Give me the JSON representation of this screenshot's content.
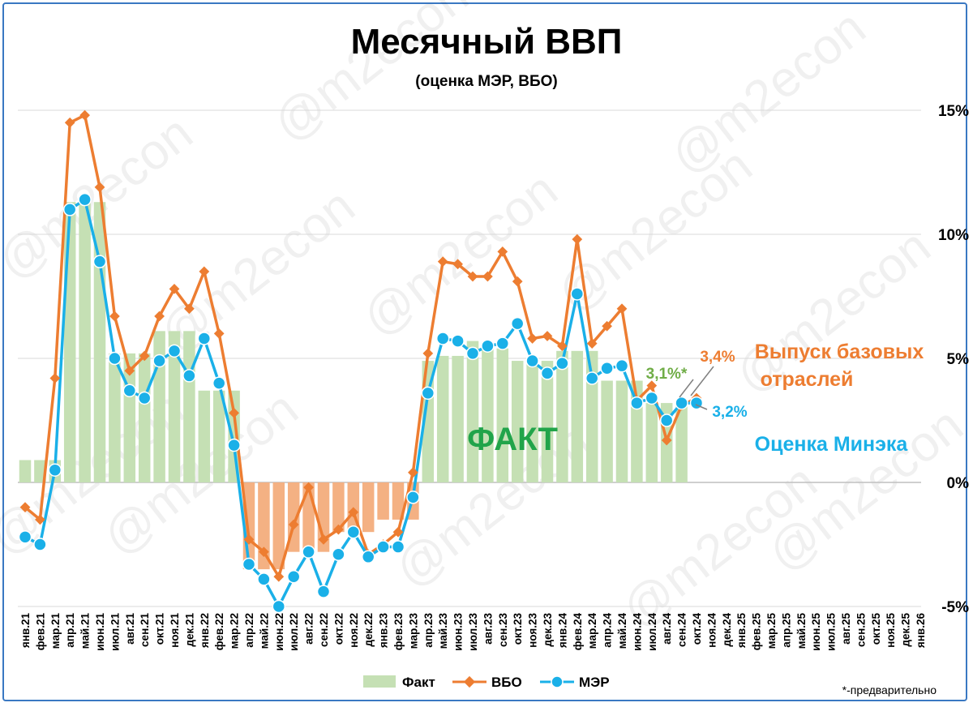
{
  "chart_data": {
    "type": "bar",
    "title": "Месячный ВВП",
    "subtitle": "(оценка МЭР, ВБО)",
    "categories": [
      "янв.21",
      "фев.21",
      "мар.21",
      "апр.21",
      "май.21",
      "июн.21",
      "июл.21",
      "авг.21",
      "сен.21",
      "окт.21",
      "ноя.21",
      "дек.21",
      "янв.22",
      "фев.22",
      "мар.22",
      "апр.22",
      "май.22",
      "июн.22",
      "июл.22",
      "авг.22",
      "сен.22",
      "окт.22",
      "ноя.22",
      "дек.22",
      "янв.23",
      "фев.23",
      "мар.23",
      "апр.23",
      "май.23",
      "июн.23",
      "июл.23",
      "авг.23",
      "сен.23",
      "окт.23",
      "ноя.23",
      "дек.23",
      "янв.24",
      "фев.24",
      "мар.24",
      "апр.24",
      "май.24",
      "июн.24",
      "июл.24",
      "авг.24",
      "сен.24",
      "окт.24",
      "ноя.24",
      "дек.24",
      "янв.25",
      "фев.25",
      "мар.25",
      "апр.25",
      "май.25",
      "июн.25",
      "июл.25",
      "авг.25",
      "сен.25",
      "окт.25",
      "ноя.25",
      "дек.25",
      "янв.26"
    ],
    "series": [
      {
        "name": "Факт",
        "type": "bar",
        "color": "#c5e0b4",
        "values": [
          0.9,
          0.9,
          0.9,
          11.3,
          11.3,
          11.3,
          5.2,
          5.2,
          5.2,
          6.1,
          6.1,
          6.1,
          3.7,
          3.7,
          3.7,
          -3.5,
          -3.5,
          -3.5,
          -2.8,
          -2.8,
          -2.8,
          -2.0,
          -2.0,
          -2.0,
          -1.5,
          -1.5,
          -1.5,
          4.9,
          5.1,
          5.1,
          5.7,
          5.4,
          5.4,
          4.9,
          4.9,
          4.9,
          5.3,
          5.3,
          5.3,
          4.1,
          4.1,
          4.1,
          3.2,
          3.2,
          3.1,
          null,
          null,
          null,
          null,
          null,
          null,
          null,
          null,
          null,
          null,
          null,
          null,
          null,
          null,
          null,
          null
        ]
      },
      {
        "name": "ВБО",
        "type": "line",
        "color": "#ed7d31",
        "values": [
          -1.0,
          -1.5,
          4.2,
          14.5,
          14.8,
          11.9,
          6.7,
          4.5,
          5.1,
          6.7,
          7.8,
          7.0,
          8.5,
          6.0,
          2.8,
          -2.3,
          -2.8,
          -3.8,
          -1.7,
          -0.2,
          -2.3,
          -1.9,
          -1.2,
          -2.9,
          -2.5,
          -2.0,
          0.4,
          5.2,
          8.9,
          8.8,
          8.3,
          8.3,
          9.3,
          8.1,
          5.8,
          5.9,
          5.5,
          9.8,
          5.6,
          6.3,
          7.0,
          3.3,
          3.9,
          1.7,
          3.1,
          3.4,
          null,
          null,
          null,
          null,
          null,
          null,
          null,
          null,
          null,
          null,
          null,
          null,
          null,
          null,
          null
        ]
      },
      {
        "name": "МЭР",
        "type": "line",
        "color": "#1ab0e8",
        "values": [
          -2.2,
          -2.5,
          0.5,
          11.0,
          11.4,
          8.9,
          5.0,
          3.7,
          3.4,
          4.9,
          5.3,
          4.3,
          5.8,
          4.0,
          1.5,
          -3.3,
          -3.9,
          -5.0,
          -3.8,
          -2.8,
          -4.4,
          -2.9,
          -2.0,
          -3.0,
          -2.6,
          -2.6,
          -0.6,
          3.6,
          5.8,
          5.7,
          5.2,
          5.5,
          5.6,
          6.4,
          4.9,
          4.4,
          4.8,
          7.6,
          4.2,
          4.6,
          4.7,
          3.2,
          3.4,
          2.5,
          3.2,
          3.2,
          null,
          null,
          null,
          null,
          null,
          null,
          null,
          null,
          null,
          null,
          null,
          null,
          null,
          null,
          null
        ]
      }
    ],
    "ylim": [
      -5,
      15
    ],
    "yticks": [
      "-5%",
      "0%",
      "5%",
      "10%",
      "15%"
    ],
    "ytick_values": [
      -5,
      0,
      5,
      10,
      15
    ],
    "grid": true,
    "legend": [
      "Факт",
      "ВБО",
      "МЭР"
    ],
    "legend_position": "bottom",
    "annotations": {
      "fakt": "ФАКТ",
      "vbo_label_1": "Выпуск базовых",
      "vbo_label_2": "отраслей",
      "mer_label": "Оценка Минэка",
      "val_fakt": "3,1%*",
      "val_vbo": "3,4%",
      "val_mer": "3,2%",
      "footnote": "*-предварительно"
    },
    "watermark": "@m2econ",
    "colors": {
      "bar_positive": "#c5e0b4",
      "bar_negative": "#f4b183",
      "vbo": "#ed7d31",
      "mer": "#1ab0e8",
      "fakt_text": "#21a44a",
      "fakt_value": "#70ad47",
      "frame": "#3a78c2"
    }
  }
}
